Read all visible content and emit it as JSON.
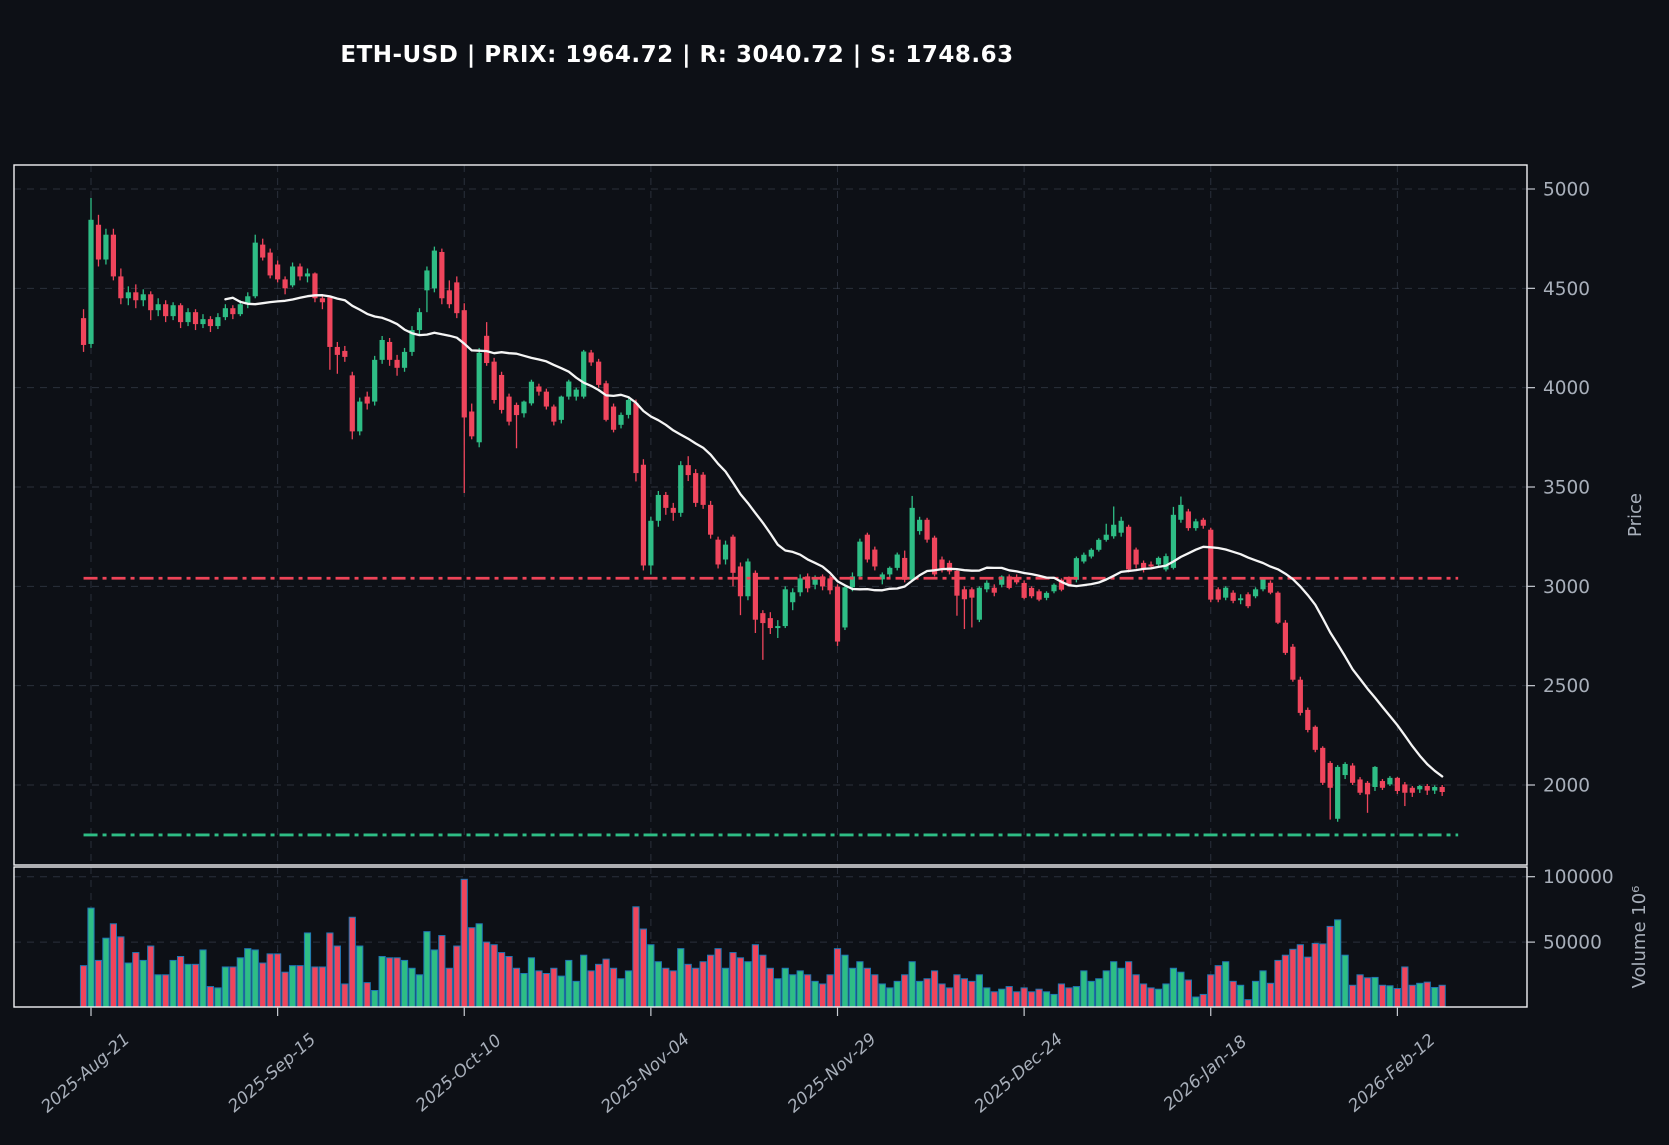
{
  "header": {
    "title": "ETH-USD | PRIX: 1964.72 | R: 3040.72 | S: 1748.63",
    "symbol": "ETH-USD",
    "prix": 1964.72,
    "resistance": 3040.72,
    "support": 1748.63
  },
  "colors": {
    "background": "#0d1016",
    "up": "#2ebd85",
    "down": "#ef455c",
    "ma_line": "#f5f5f5",
    "resistance_line": "#ee4458",
    "support_line": "#2ebd85",
    "grid": "#3a4150",
    "spine": "#f2f3f5",
    "tick_label": "#a8afba",
    "volume_bar_edge": "#1f77b4",
    "title_color": "#ffffff"
  },
  "chart_data": {
    "type": "candlestick+volume",
    "title": "ETH-USD | PRIX: 1964.72 | R: 3040.72 | S: 1748.63",
    "start_date": "2025-08-20",
    "frequency": "daily",
    "ma_window": 20,
    "legend_position": "none",
    "grid": true,
    "price_axis": {
      "label": "Price",
      "ticks": [
        5000,
        4500,
        4000,
        3500,
        3000,
        2500,
        2000
      ],
      "ylim": [
        1600,
        5120
      ]
    },
    "volume_axis": {
      "label": "Volume  10⁶",
      "ticks": [
        100000,
        50000
      ],
      "ylim": [
        0,
        107000
      ]
    },
    "x_ticks": {
      "labels": [
        "2025-Aug-21",
        "2025-Sep-15",
        "2025-Oct-10",
        "2025-Nov-04",
        "2025-Nov-29",
        "2025-Dec-24",
        "2026-Jan-18",
        "2026-Feb-12"
      ],
      "indices": [
        1,
        26,
        51,
        76,
        101,
        126,
        151,
        176
      ]
    },
    "levels": {
      "resistance": 3040.72,
      "support": 1748.63
    },
    "candles_format": [
      "open",
      "high",
      "low",
      "close",
      "volume"
    ],
    "candles": [
      [
        4350,
        4395,
        4180,
        4215,
        32000
      ],
      [
        4220,
        4955,
        4200,
        4845,
        76000
      ],
      [
        4820,
        4870,
        4610,
        4645,
        36000
      ],
      [
        4645,
        4800,
        4620,
        4770,
        53000
      ],
      [
        4770,
        4800,
        4540,
        4560,
        64000
      ],
      [
        4560,
        4600,
        4420,
        4450,
        54000
      ],
      [
        4450,
        4510,
        4415,
        4480,
        34000
      ],
      [
        4480,
        4520,
        4400,
        4440,
        42000
      ],
      [
        4440,
        4495,
        4410,
        4470,
        36000
      ],
      [
        4470,
        4485,
        4340,
        4390,
        47000
      ],
      [
        4390,
        4450,
        4360,
        4420,
        25000
      ],
      [
        4420,
        4440,
        4330,
        4360,
        25000
      ],
      [
        4360,
        4430,
        4340,
        4415,
        36000
      ],
      [
        4415,
        4425,
        4300,
        4330,
        39000
      ],
      [
        4330,
        4400,
        4310,
        4380,
        33000
      ],
      [
        4380,
        4395,
        4290,
        4320,
        33000
      ],
      [
        4320,
        4370,
        4300,
        4345,
        44000
      ],
      [
        4345,
        4360,
        4280,
        4310,
        16000
      ],
      [
        4310,
        4375,
        4295,
        4355,
        15000
      ],
      [
        4355,
        4420,
        4340,
        4400,
        31000
      ],
      [
        4400,
        4415,
        4345,
        4370,
        31000
      ],
      [
        4370,
        4440,
        4360,
        4420,
        38000
      ],
      [
        4420,
        4480,
        4400,
        4460,
        45000
      ],
      [
        4460,
        4770,
        4450,
        4730,
        44000
      ],
      [
        4720,
        4750,
        4640,
        4655,
        34000
      ],
      [
        4680,
        4700,
        4550,
        4565,
        41000
      ],
      [
        4620,
        4640,
        4530,
        4545,
        41000
      ],
      [
        4545,
        4560,
        4470,
        4500,
        27000
      ],
      [
        4515,
        4630,
        4505,
        4610,
        32000
      ],
      [
        4610,
        4625,
        4540,
        4560,
        32000
      ],
      [
        4560,
        4600,
        4530,
        4575,
        57000
      ],
      [
        4575,
        4580,
        4430,
        4450,
        31000
      ],
      [
        4450,
        4470,
        4395,
        4430,
        31000
      ],
      [
        4455,
        4460,
        4090,
        4205,
        57000
      ],
      [
        4205,
        4230,
        4070,
        4165,
        47000
      ],
      [
        4185,
        4210,
        4130,
        4155,
        18000
      ],
      [
        4062,
        4080,
        3740,
        3780,
        69000
      ],
      [
        3780,
        3950,
        3760,
        3930,
        47000
      ],
      [
        3955,
        3980,
        3890,
        3920,
        19000
      ],
      [
        3930,
        4160,
        3910,
        4140,
        13000
      ],
      [
        4140,
        4260,
        4120,
        4240,
        39000
      ],
      [
        4230,
        4250,
        4110,
        4140,
        38000
      ],
      [
        4140,
        4165,
        4060,
        4100,
        38000
      ],
      [
        4100,
        4200,
        4080,
        4180,
        36000
      ],
      [
        4180,
        4310,
        4160,
        4290,
        30000
      ],
      [
        4290,
        4400,
        4270,
        4380,
        25000
      ],
      [
        4490,
        4610,
        4380,
        4590,
        58000
      ],
      [
        4500,
        4710,
        4480,
        4690,
        44000
      ],
      [
        4683,
        4700,
        4420,
        4450,
        55000
      ],
      [
        4490,
        4540,
        4400,
        4420,
        30000
      ],
      [
        4530,
        4560,
        4350,
        4375,
        47000
      ],
      [
        4390,
        4425,
        3470,
        3850,
        98000
      ],
      [
        3880,
        3920,
        3740,
        3755,
        61000
      ],
      [
        3725,
        4200,
        3700,
        4175,
        64000
      ],
      [
        4261,
        4330,
        4110,
        4124,
        50000
      ],
      [
        4131,
        4150,
        3920,
        3938,
        48000
      ],
      [
        4064,
        4080,
        3870,
        3888,
        42000
      ],
      [
        3955,
        3970,
        3810,
        3829,
        39000
      ],
      [
        3913,
        3925,
        3695,
        3862,
        30000
      ],
      [
        3871,
        3935,
        3850,
        3930,
        26000
      ],
      [
        3921,
        4040,
        3910,
        4030,
        38000
      ],
      [
        4006,
        4020,
        3960,
        3980,
        28000
      ],
      [
        3980,
        3995,
        3890,
        3905,
        26000
      ],
      [
        3905,
        3915,
        3810,
        3829,
        30000
      ],
      [
        3838,
        3960,
        3820,
        3955,
        24000
      ],
      [
        3955,
        4040,
        3940,
        4031,
        36000
      ],
      [
        3955,
        4000,
        3935,
        3990,
        20000
      ],
      [
        3955,
        4190,
        3945,
        4182,
        40000
      ],
      [
        4177,
        4190,
        4110,
        4127,
        28000
      ],
      [
        4131,
        4145,
        4000,
        4014,
        33000
      ],
      [
        4022,
        4035,
        3830,
        3838,
        37000
      ],
      [
        3905,
        3920,
        3775,
        3788,
        30000
      ],
      [
        3813,
        3875,
        3795,
        3863,
        22000
      ],
      [
        3863,
        3945,
        3845,
        3938,
        28000
      ],
      [
        3922,
        3940,
        3528,
        3570,
        77000
      ],
      [
        3612,
        3640,
        3080,
        3105,
        60000
      ],
      [
        3105,
        3350,
        3060,
        3330,
        48000
      ],
      [
        3330,
        3480,
        3300,
        3460,
        35000
      ],
      [
        3460,
        3475,
        3360,
        3395,
        30000
      ],
      [
        3395,
        3420,
        3330,
        3370,
        28000
      ],
      [
        3370,
        3630,
        3350,
        3610,
        45000
      ],
      [
        3610,
        3655,
        3530,
        3560,
        33000
      ],
      [
        3570,
        3590,
        3400,
        3420,
        30000
      ],
      [
        3562,
        3575,
        3390,
        3410,
        35000
      ],
      [
        3410,
        3430,
        3240,
        3260,
        40000
      ],
      [
        3235,
        3250,
        3090,
        3110,
        45000
      ],
      [
        3135,
        3230,
        3110,
        3210,
        30000
      ],
      [
        3250,
        3260,
        3000,
        3068,
        42000
      ],
      [
        3100,
        3120,
        2855,
        2950,
        38000
      ],
      [
        2950,
        3140,
        2930,
        3125,
        35000
      ],
      [
        3068,
        3080,
        2765,
        2832,
        48000
      ],
      [
        2865,
        2880,
        2630,
        2815,
        40000
      ],
      [
        2840,
        2870,
        2760,
        2790,
        30000
      ],
      [
        2790,
        2830,
        2740,
        2800,
        22000
      ],
      [
        2800,
        3000,
        2790,
        2985,
        30000
      ],
      [
        2920,
        2990,
        2880,
        2970,
        25000
      ],
      [
        2970,
        3060,
        2950,
        3040,
        28000
      ],
      [
        3050,
        3065,
        2970,
        2990,
        25000
      ],
      [
        3008,
        3055,
        2985,
        3040,
        20000
      ],
      [
        3050,
        3060,
        2980,
        3000,
        18000
      ],
      [
        3040,
        3055,
        2960,
        2980,
        25000
      ],
      [
        2998,
        3010,
        2700,
        2722,
        45000
      ],
      [
        2793,
        3000,
        2780,
        2995,
        40000
      ],
      [
        2995,
        3070,
        2975,
        3050,
        30000
      ],
      [
        3050,
        3240,
        3040,
        3225,
        35000
      ],
      [
        3260,
        3270,
        3120,
        3135,
        30000
      ],
      [
        3185,
        3200,
        3080,
        3100,
        25000
      ],
      [
        3035,
        3070,
        3010,
        3060,
        18000
      ],
      [
        3060,
        3100,
        3040,
        3093,
        15000
      ],
      [
        3093,
        3170,
        3080,
        3160,
        20000
      ],
      [
        3143,
        3180,
        3020,
        3033,
        25000
      ],
      [
        3033,
        3455,
        3025,
        3395,
        35000
      ],
      [
        3278,
        3350,
        3260,
        3335,
        20000
      ],
      [
        3335,
        3345,
        3220,
        3235,
        22000
      ],
      [
        3245,
        3255,
        3050,
        3060,
        28000
      ],
      [
        3135,
        3150,
        3070,
        3085,
        18000
      ],
      [
        3118,
        3130,
        3060,
        3075,
        15000
      ],
      [
        3078,
        3085,
        2852,
        2953,
        25000
      ],
      [
        2985,
        3000,
        2785,
        2935,
        22000
      ],
      [
        2985,
        2995,
        2793,
        2943,
        20000
      ],
      [
        2832,
        3000,
        2820,
        2993,
        25000
      ],
      [
        2985,
        3030,
        2970,
        3018,
        15000
      ],
      [
        2993,
        3010,
        2950,
        2968,
        12000
      ],
      [
        3008,
        3055,
        2995,
        3050,
        14000
      ],
      [
        3050,
        3060,
        2985,
        2992,
        16000
      ],
      [
        3047,
        3060,
        3010,
        3020,
        12000
      ],
      [
        3017,
        3030,
        2935,
        2942,
        15000
      ],
      [
        2992,
        3000,
        2940,
        2950,
        12000
      ],
      [
        2975,
        2985,
        2925,
        2933,
        14000
      ],
      [
        2942,
        2975,
        2930,
        2967,
        12000
      ],
      [
        2975,
        3015,
        2965,
        3008,
        10000
      ],
      [
        3033,
        3040,
        2975,
        2983,
        18000
      ],
      [
        3042,
        3050,
        3000,
        3008,
        15000
      ],
      [
        3033,
        3150,
        3020,
        3142,
        16000
      ],
      [
        3125,
        3170,
        3115,
        3159,
        28000
      ],
      [
        3150,
        3192,
        3140,
        3184,
        20000
      ],
      [
        3184,
        3242,
        3175,
        3234,
        22000
      ],
      [
        3234,
        3315,
        3225,
        3260,
        28000
      ],
      [
        3252,
        3402,
        3240,
        3310,
        35000
      ],
      [
        3270,
        3350,
        3250,
        3330,
        30000
      ],
      [
        3300,
        3310,
        3070,
        3085,
        35000
      ],
      [
        3185,
        3195,
        3090,
        3110,
        25000
      ],
      [
        3118,
        3130,
        3070,
        3085,
        18000
      ],
      [
        3110,
        3125,
        3085,
        3100,
        15000
      ],
      [
        3110,
        3150,
        3095,
        3143,
        14000
      ],
      [
        3085,
        3165,
        3075,
        3152,
        18000
      ],
      [
        3093,
        3400,
        3085,
        3360,
        30000
      ],
      [
        3335,
        3452,
        3320,
        3410,
        27000
      ],
      [
        3377,
        3390,
        3280,
        3293,
        21000
      ],
      [
        3293,
        3340,
        3280,
        3327,
        8000
      ],
      [
        3335,
        3345,
        3290,
        3305,
        10000
      ],
      [
        3285,
        3295,
        2920,
        2933,
        25000
      ],
      [
        2985,
        2995,
        2920,
        2933,
        32000
      ],
      [
        2943,
        3000,
        2930,
        2993,
        35000
      ],
      [
        2968,
        2980,
        2915,
        2927,
        20000
      ],
      [
        2930,
        2960,
        2910,
        2940,
        17000
      ],
      [
        2960,
        2970,
        2890,
        2900,
        6000
      ],
      [
        2950,
        2995,
        2940,
        2985,
        20000
      ],
      [
        2985,
        3045,
        2975,
        3035,
        28000
      ],
      [
        3018,
        3030,
        2960,
        2968,
        18500
      ],
      [
        2968,
        2975,
        2810,
        2817,
        36000
      ],
      [
        2817,
        2830,
        2655,
        2665,
        40000
      ],
      [
        2696,
        2710,
        2520,
        2530,
        44500
      ],
      [
        2530,
        2545,
        2350,
        2363,
        48000
      ],
      [
        2378,
        2390,
        2265,
        2277,
        38500
      ],
      [
        2293,
        2300,
        2165,
        2177,
        49000
      ],
      [
        2187,
        2195,
        2000,
        2011,
        48600
      ],
      [
        2111,
        2120,
        1826,
        1986,
        62000
      ],
      [
        1830,
        2100,
        1815,
        2091,
        67000
      ],
      [
        2050,
        2115,
        2030,
        2106,
        40000
      ],
      [
        2098,
        2110,
        2000,
        2011,
        17000
      ],
      [
        2028,
        2040,
        1950,
        1961,
        25000
      ],
      [
        2011,
        2020,
        1860,
        1953,
        22700
      ],
      [
        1990,
        2095,
        1970,
        2091,
        23000
      ],
      [
        2020,
        2030,
        1975,
        1986,
        17000
      ],
      [
        2003,
        2045,
        1995,
        2036,
        16600
      ],
      [
        2036,
        2040,
        1955,
        1970,
        14500
      ],
      [
        2003,
        2015,
        1894,
        1961,
        31000
      ],
      [
        1986,
        1995,
        1940,
        1961,
        17000
      ],
      [
        1978,
        2000,
        1960,
        1995,
        18500
      ],
      [
        1995,
        2005,
        1950,
        1972,
        19400
      ],
      [
        1972,
        1998,
        1955,
        1990,
        15300
      ],
      [
        1990,
        2000,
        1945,
        1964.72,
        17000
      ]
    ]
  }
}
